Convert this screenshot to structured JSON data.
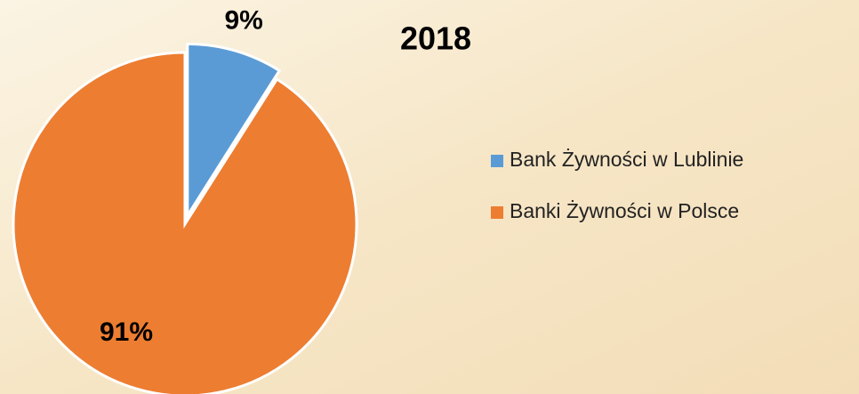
{
  "chart_data": {
    "type": "pie",
    "title": "2018",
    "categories": [
      "Bank Żywności w Lublinie",
      "Banki Żywności w Polsce"
    ],
    "values": [
      9,
      91
    ],
    "value_labels": [
      "9%",
      "91%"
    ],
    "colors": [
      "#5b9bd5",
      "#ed7d31"
    ]
  }
}
